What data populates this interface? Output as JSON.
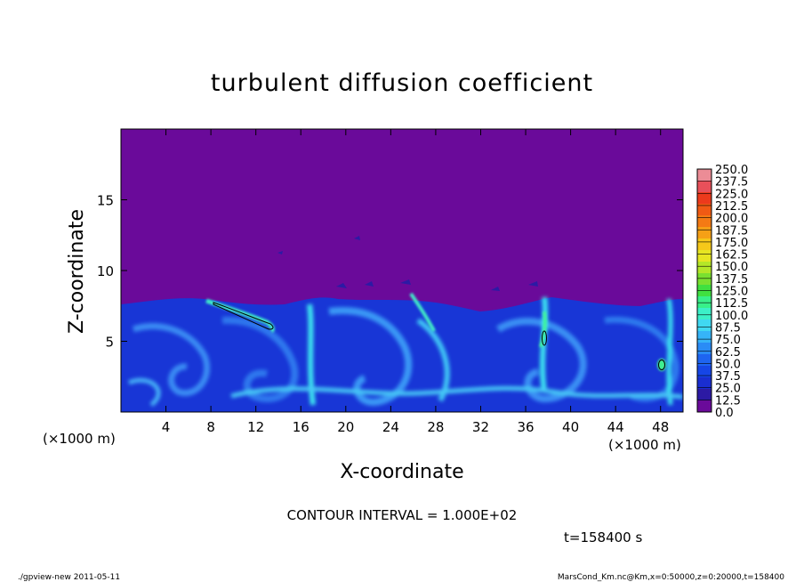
{
  "chart_data": {
    "type": "heatmap",
    "title": "turbulent diffusion coefficient",
    "xlabel": "X-coordinate",
    "ylabel": "Z-coordinate",
    "x_unit": "(×1000 m)",
    "y_unit": "(×1000 m)",
    "xlim": [
      0,
      50
    ],
    "ylim": [
      0,
      20
    ],
    "x_ticks": [
      4,
      8,
      12,
      16,
      20,
      24,
      28,
      32,
      36,
      40,
      44,
      48
    ],
    "y_ticks": [
      5,
      10,
      15
    ],
    "colorbar": {
      "levels": [
        0.0,
        12.5,
        25.0,
        37.5,
        50.0,
        62.5,
        75.0,
        87.5,
        100.0,
        112.5,
        125.0,
        137.5,
        150.0,
        162.5,
        175.0,
        187.5,
        200.0,
        212.5,
        225.0,
        237.5,
        250.0
      ],
      "labels": [
        "0.0",
        "12.5",
        "25.0",
        "37.5",
        "50.0",
        "62.5",
        "75.0",
        "87.5",
        "100.0",
        "112.5",
        "125.0",
        "137.5",
        "150.0",
        "162.5",
        "175.0",
        "187.5",
        "200.0",
        "212.5",
        "225.0",
        "237.5",
        "250.0"
      ],
      "colors": [
        "#6a0a9a",
        "#2c1aa4",
        "#1a2ed0",
        "#1646e6",
        "#1e64f0",
        "#2a8cf6",
        "#36b4f8",
        "#40d8f2",
        "#3cf0c8",
        "#38f08a",
        "#40e040",
        "#7ae030",
        "#b4e628",
        "#e6e622",
        "#f6c81a",
        "#f6a016",
        "#f47a14",
        "#f05a14",
        "#ec3a1c",
        "#e8505a",
        "#ec8c96"
      ]
    },
    "regions": {
      "upper_layer": {
        "z_range": [
          8,
          20
        ],
        "value": 0
      },
      "mixed_layer_top_km": 7.5,
      "mixed_layer_typical_value": 37.5,
      "plume_peak_value": 100
    },
    "annotations": {
      "contour_interval": "CONTOUR INTERVAL = 1.000E+02",
      "time": "t=158400 s"
    }
  },
  "footer": {
    "left": "./gpview-new   2011-05-11",
    "right": "MarsCond_Km.nc@Km,x=0:50000,z=0:20000,t=158400"
  }
}
